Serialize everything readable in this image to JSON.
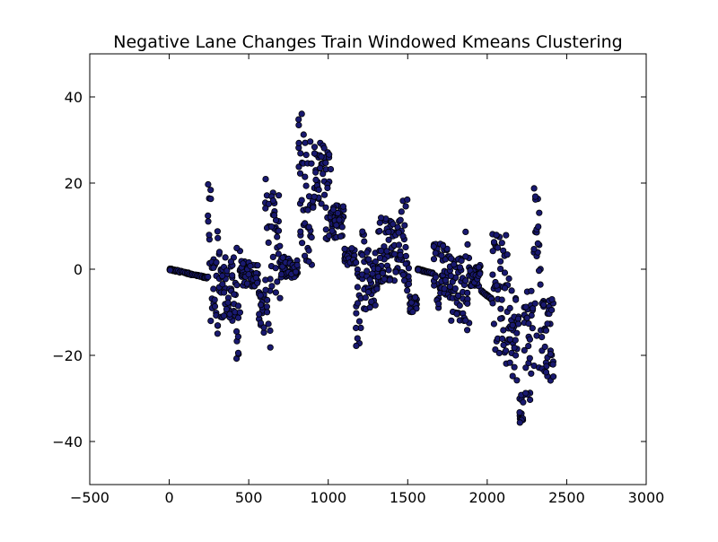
{
  "chart_data": {
    "type": "scatter",
    "title": "Negative Lane Changes Train Windowed Kmeans Clustering",
    "xlabel": "",
    "ylabel": "",
    "xlim": [
      -500,
      3000
    ],
    "ylim": [
      -50,
      50
    ],
    "x_ticks": [
      -500,
      0,
      500,
      1000,
      1500,
      2000,
      2500,
      3000
    ],
    "y_ticks": [
      -40,
      -20,
      0,
      20,
      40
    ],
    "x_tick_labels": [
      "−500",
      "0",
      "500",
      "1000",
      "1500",
      "2000",
      "2500",
      "3000"
    ],
    "y_tick_labels": [
      "−40",
      "−20",
      "0",
      "20",
      "40"
    ],
    "grid": false,
    "marker_color": "#191970",
    "marker_edge_color": "#000000",
    "segments": [
      {
        "x_start": 0,
        "x_end": 240,
        "y_min": -2,
        "y_max": 0
      },
      {
        "x_start": 240,
        "x_end": 265,
        "y_min": -15,
        "y_max": 20
      },
      {
        "x_start": 265,
        "x_end": 300,
        "y_min": -12,
        "y_max": 3
      },
      {
        "x_start": 300,
        "x_end": 330,
        "y_min": -16,
        "y_max": 9
      },
      {
        "x_start": 330,
        "x_end": 420,
        "y_min": -12,
        "y_max": 3
      },
      {
        "x_start": 420,
        "x_end": 450,
        "y_min": -22,
        "y_max": 6
      },
      {
        "x_start": 450,
        "x_end": 560,
        "y_min": -4,
        "y_max": 2
      },
      {
        "x_start": 560,
        "x_end": 600,
        "y_min": -15,
        "y_max": -4
      },
      {
        "x_start": 600,
        "x_end": 640,
        "y_min": -19,
        "y_max": 21
      },
      {
        "x_start": 640,
        "x_end": 700,
        "y_min": -7,
        "y_max": 18
      },
      {
        "x_start": 700,
        "x_end": 810,
        "y_min": -2,
        "y_max": 3
      },
      {
        "x_start": 810,
        "x_end": 850,
        "y_min": 4,
        "y_max": 39
      },
      {
        "x_start": 850,
        "x_end": 900,
        "y_min": 1,
        "y_max": 33
      },
      {
        "x_start": 900,
        "x_end": 980,
        "y_min": 14,
        "y_max": 30
      },
      {
        "x_start": 980,
        "x_end": 1020,
        "y_min": 6,
        "y_max": 28
      },
      {
        "x_start": 1020,
        "x_end": 1100,
        "y_min": 7,
        "y_max": 15
      },
      {
        "x_start": 1100,
        "x_end": 1170,
        "y_min": 1,
        "y_max": 5
      },
      {
        "x_start": 1170,
        "x_end": 1210,
        "y_min": -19,
        "y_max": 5
      },
      {
        "x_start": 1210,
        "x_end": 1240,
        "y_min": -11,
        "y_max": 11
      },
      {
        "x_start": 1240,
        "x_end": 1310,
        "y_min": -9,
        "y_max": 5
      },
      {
        "x_start": 1310,
        "x_end": 1440,
        "y_min": -3,
        "y_max": 12
      },
      {
        "x_start": 1440,
        "x_end": 1510,
        "y_min": -5,
        "y_max": 17
      },
      {
        "x_start": 1510,
        "x_end": 1560,
        "y_min": -10,
        "y_max": -6
      },
      {
        "x_start": 1560,
        "x_end": 1660,
        "y_min": -1,
        "y_max": 0
      },
      {
        "x_start": 1660,
        "x_end": 1700,
        "y_min": -9,
        "y_max": 8
      },
      {
        "x_start": 1700,
        "x_end": 1760,
        "y_min": -6,
        "y_max": 6
      },
      {
        "x_start": 1760,
        "x_end": 1860,
        "y_min": -12,
        "y_max": 3
      },
      {
        "x_start": 1860,
        "x_end": 1890,
        "y_min": -15,
        "y_max": 10
      },
      {
        "x_start": 1890,
        "x_end": 1960,
        "y_min": -4,
        "y_max": 1
      },
      {
        "x_start": 1960,
        "x_end": 2030,
        "y_min": -7,
        "y_max": -5
      },
      {
        "x_start": 2030,
        "x_end": 2080,
        "y_min": -20,
        "y_max": 12
      },
      {
        "x_start": 2080,
        "x_end": 2140,
        "y_min": -25,
        "y_max": 8
      },
      {
        "x_start": 2140,
        "x_end": 2200,
        "y_min": -28,
        "y_max": -4
      },
      {
        "x_start": 2200,
        "x_end": 2230,
        "y_min": -36,
        "y_max": -25
      },
      {
        "x_start": 2230,
        "x_end": 2290,
        "y_min": -31,
        "y_max": -5
      },
      {
        "x_start": 2290,
        "x_end": 2340,
        "y_min": -23,
        "y_max": 19
      },
      {
        "x_start": 2340,
        "x_end": 2420,
        "y_min": -26,
        "y_max": -7
      }
    ]
  }
}
